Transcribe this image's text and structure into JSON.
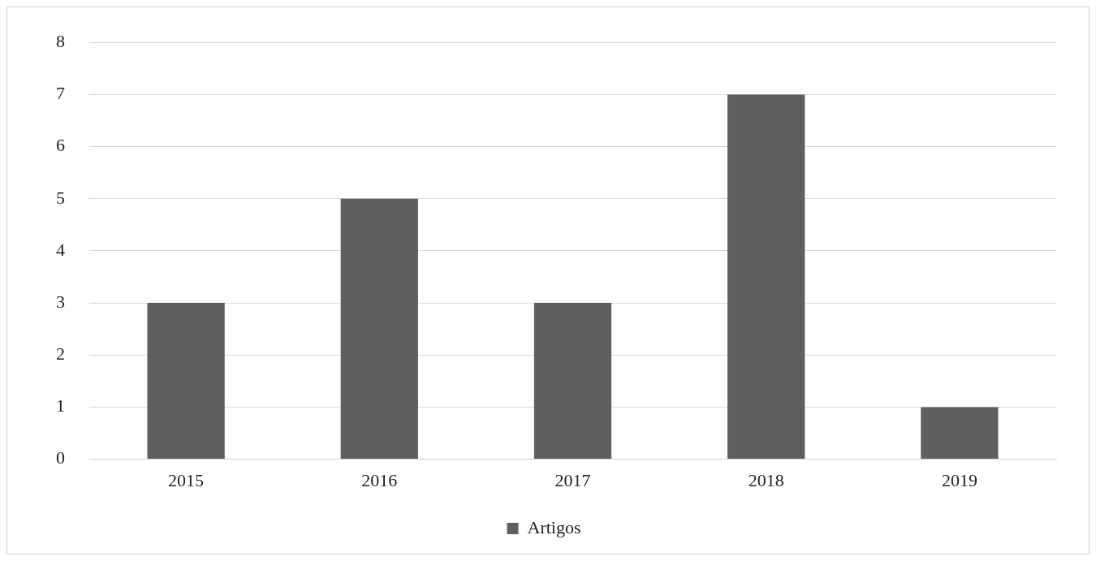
{
  "chart_data": {
    "type": "bar",
    "categories": [
      "2015",
      "2016",
      "2017",
      "2018",
      "2019"
    ],
    "series": [
      {
        "name": "Artigos",
        "color": "#5f5f5f",
        "values": [
          3,
          5,
          3,
          7,
          1
        ]
      }
    ],
    "ylim": [
      0,
      8
    ],
    "yticks": [
      0,
      1,
      2,
      3,
      4,
      5,
      6,
      7,
      8
    ],
    "grid": "y",
    "legend": "bottom"
  }
}
